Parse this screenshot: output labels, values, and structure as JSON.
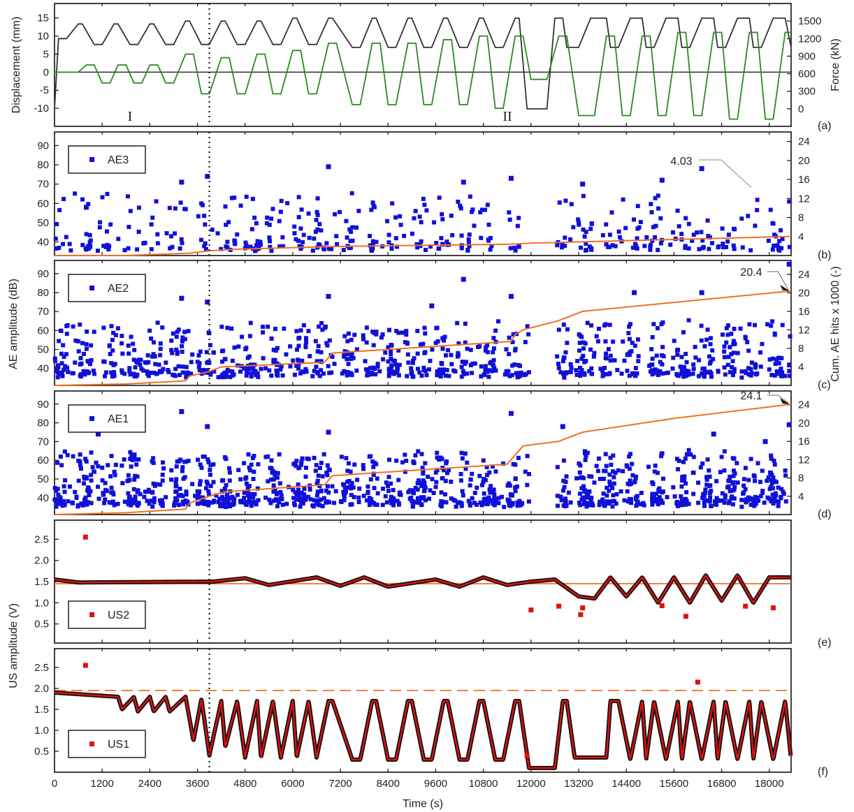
{
  "chart_data": [
    {
      "panel": "(a)",
      "type": "line",
      "ylabel_left": "Displacement (mm)",
      "ylabel_right": "Force (kN)",
      "ylim_left": [
        -15,
        19
      ],
      "yticks_left": [
        -10,
        -5,
        0,
        5,
        10,
        15
      ],
      "ylim_right": [
        -300,
        1800
      ],
      "yticks_right": [
        0,
        300,
        600,
        900,
        1200,
        1500
      ],
      "region_labels": [
        "I",
        "II"
      ],
      "series": [
        {
          "name": "Force",
          "axis": "right",
          "color": "#333333",
          "x": [
            0,
            100,
            300,
            600,
            700,
            1000,
            1200,
            1500,
            1600,
            1900,
            2100,
            2400,
            2500,
            2800,
            3000,
            3300,
            3400,
            3700,
            3900,
            4200,
            4300,
            4600,
            4800,
            5100,
            5200,
            5500,
            5700,
            6000,
            6100,
            6400,
            6600,
            6900,
            7000,
            7500,
            7700,
            8000,
            8100,
            8400,
            8600,
            8900,
            9000,
            9300,
            9500,
            9800,
            9900,
            10200,
            10400,
            10700,
            10800,
            11100,
            11300,
            11600,
            11700,
            11900,
            11900,
            12400,
            12600,
            12800,
            12900,
            13200,
            13500,
            13900,
            14000,
            14200,
            14500,
            14800,
            14900,
            15100,
            15400,
            15700,
            15800,
            16000,
            16300,
            16600,
            16700,
            16900,
            17200,
            17500,
            17600,
            17800,
            18100,
            18400,
            18550
          ],
          "y": [
            0,
            1200,
            1200,
            1450,
            1450,
            1100,
            1100,
            1450,
            1450,
            1100,
            1100,
            1450,
            1450,
            1100,
            1100,
            1500,
            1500,
            1100,
            1100,
            1500,
            1500,
            1100,
            1100,
            1500,
            1500,
            1100,
            1100,
            1550,
            1550,
            1100,
            1100,
            1550,
            1550,
            1050,
            1050,
            1550,
            1550,
            1050,
            1050,
            1550,
            1550,
            1050,
            1050,
            1550,
            1550,
            1050,
            1050,
            1550,
            1550,
            1050,
            1050,
            1550,
            1550,
            0,
            0,
            0,
            1550,
            1550,
            1050,
            1050,
            1550,
            1550,
            1050,
            1050,
            1550,
            1550,
            1050,
            1050,
            1550,
            1550,
            1050,
            1050,
            1550,
            1550,
            1050,
            1050,
            1550,
            1550,
            1050,
            1050,
            1550,
            1550,
            1050
          ]
        },
        {
          "name": "Displacement",
          "axis": "left",
          "color": "#2a8a1e",
          "x": [
            0,
            400,
            600,
            800,
            1000,
            1200,
            1400,
            1600,
            1800,
            2000,
            2200,
            2400,
            2600,
            2800,
            3000,
            3300,
            3500,
            3700,
            3900,
            4200,
            4400,
            4600,
            4800,
            5100,
            5300,
            5500,
            5700,
            6000,
            6200,
            6400,
            6600,
            6900,
            7100,
            7500,
            7700,
            8000,
            8200,
            8400,
            8600,
            8900,
            9100,
            9300,
            9500,
            9800,
            10000,
            10200,
            10400,
            10700,
            10900,
            11100,
            11300,
            11600,
            11800,
            12000,
            12400,
            12700,
            12900,
            13200,
            13600,
            13900,
            14100,
            14300,
            14500,
            14800,
            15000,
            15200,
            15400,
            15700,
            15900,
            16100,
            16300,
            16600,
            16800,
            17000,
            17200,
            17500,
            17700,
            17900,
            18100,
            18400,
            18550
          ],
          "y": [
            0,
            0,
            0,
            2,
            2,
            -3,
            -3,
            2,
            2,
            -3,
            -3,
            2,
            2,
            -3,
            -3,
            5,
            5,
            -6,
            -6,
            4,
            4,
            -6,
            -6,
            5,
            5,
            -6,
            -6,
            6,
            6,
            -6,
            -6,
            8,
            8,
            -9,
            -9,
            8,
            8,
            -9,
            -9,
            8,
            8,
            -9,
            -9,
            9,
            9,
            -9,
            -9,
            10,
            10,
            -10,
            -10,
            10,
            10,
            -2,
            -2,
            10,
            10,
            -12,
            -12,
            10,
            10,
            -12,
            -12,
            10,
            10,
            -12,
            -12,
            11,
            11,
            -12,
            -12,
            11,
            11,
            -13,
            -13,
            11,
            11,
            -13,
            -13,
            11,
            11
          ]
        }
      ]
    },
    {
      "panel": "(b)",
      "type": "scatter",
      "legend": "AE3",
      "ylim": [
        33,
        97
      ],
      "yticks": [
        40,
        50,
        60,
        70,
        80,
        90
      ],
      "ylim_right": [
        0,
        26
      ],
      "yticks_right": [
        4,
        8,
        12,
        16,
        20,
        24
      ],
      "annotation": "4.03",
      "cum_hits": {
        "x": [
          0,
          1800,
          3400,
          3900,
          4500,
          7000,
          11500,
          12000,
          18550
        ],
        "y": [
          0,
          0,
          0.5,
          1.0,
          1.3,
          1.9,
          2.4,
          2.6,
          4.03
        ]
      },
      "scatter_max_amplitude_points": {
        "x": [
          800,
          3200,
          3850,
          6900,
          10300,
          11500,
          13300,
          15300,
          16300
        ],
        "y": [
          58,
          71,
          74,
          79,
          71,
          73,
          70,
          72,
          78
        ]
      }
    },
    {
      "panel": "(c)",
      "type": "scatter",
      "legend": "AE2",
      "ylim": [
        31,
        97
      ],
      "yticks": [
        40,
        50,
        60,
        70,
        80,
        90
      ],
      "ylim_right": [
        0,
        27
      ],
      "yticks_right": [
        4,
        8,
        12,
        16,
        20,
        24
      ],
      "annotation": "20.4",
      "cum_hits": {
        "x": [
          0,
          1800,
          3300,
          3400,
          3900,
          4200,
          6800,
          7000,
          11500,
          11600,
          11800,
          12700,
          13300,
          14500,
          18550
        ],
        "y": [
          0,
          0.3,
          1.0,
          2.0,
          3.0,
          4.0,
          5.0,
          7.0,
          9.5,
          11.0,
          12.0,
          14.0,
          16.0,
          17.0,
          20.4
        ]
      },
      "scatter_max_amplitude_points": {
        "x": [
          3200,
          3850,
          6900,
          9500,
          10300,
          11500,
          14600,
          16300,
          18500
        ],
        "y": [
          77,
          75,
          78,
          73,
          87,
          78,
          80,
          80,
          95
        ]
      }
    },
    {
      "panel": "(d)",
      "type": "scatter",
      "legend": "AE1",
      "ylim": [
        31,
        97
      ],
      "yticks": [
        40,
        50,
        60,
        70,
        80,
        90
      ],
      "ylim_right": [
        0,
        27
      ],
      "yticks_right": [
        4,
        8,
        12,
        16,
        20,
        24
      ],
      "annotation": "24.1",
      "cum_hits": {
        "x": [
          0,
          1800,
          3300,
          3400,
          3900,
          4300,
          6800,
          7000,
          11400,
          11600,
          11800,
          12700,
          13300,
          15600,
          18550
        ],
        "y": [
          0,
          0.4,
          1.2,
          2.5,
          4.0,
          5.0,
          6.5,
          8.5,
          11.0,
          13.0,
          15.0,
          16.0,
          18.0,
          21.0,
          24.1
        ]
      },
      "scatter_max_amplitude_points": {
        "x": [
          1100,
          3200,
          3850,
          6900,
          11500,
          12800,
          16600,
          17900,
          18500
        ],
        "y": [
          74,
          86,
          78,
          75,
          85,
          78,
          74,
          70,
          79
        ]
      }
    },
    {
      "panel": "(e)",
      "type": "scatter",
      "legend": "US2",
      "ylabel_shared": "US amplitude (V)",
      "ylim": [
        0.05,
        2.95
      ],
      "yticks": [
        0.5,
        1.0,
        1.5,
        2.0,
        2.5
      ],
      "reference_level": 1.45,
      "trace": {
        "x": [
          0,
          600,
          4000,
          4800,
          5400,
          6600,
          7200,
          7800,
          8400,
          9600,
          10200,
          10800,
          11400,
          12000,
          12600,
          13200,
          13600,
          14000,
          14400,
          14800,
          15200,
          15600,
          16000,
          16400,
          16800,
          17200,
          17600,
          18000,
          18550
        ],
        "y": [
          1.55,
          1.48,
          1.5,
          1.58,
          1.42,
          1.6,
          1.4,
          1.6,
          1.38,
          1.55,
          1.38,
          1.6,
          1.42,
          1.5,
          1.55,
          1.15,
          1.1,
          1.6,
          1.15,
          1.6,
          1.0,
          1.6,
          1.0,
          1.65,
          1.05,
          1.65,
          1.0,
          1.6,
          1.6
        ]
      },
      "outliers": {
        "x": [
          780,
          12000,
          12700,
          13250,
          13300,
          15300,
          15900,
          17400,
          18100
        ],
        "y": [
          2.55,
          0.83,
          0.92,
          0.72,
          0.88,
          0.93,
          0.68,
          0.92,
          0.88
        ]
      }
    },
    {
      "panel": "(f)",
      "type": "scatter",
      "legend": "US1",
      "ylim": [
        0.0,
        2.95
      ],
      "yticks": [
        0.5,
        1.0,
        1.5,
        2.0,
        2.5
      ],
      "reference_level": 1.95,
      "xlabel": "Time (s)",
      "xlim": [
        0,
        18550
      ],
      "xticks": [
        0,
        1200,
        2400,
        3600,
        4800,
        6000,
        7200,
        8400,
        9600,
        10800,
        12000,
        13200,
        14400,
        15600,
        16800,
        18000
      ],
      "trace": {
        "x": [
          0,
          1600,
          1700,
          2000,
          2100,
          2400,
          2500,
          2800,
          2900,
          3300,
          3500,
          3700,
          3900,
          4200,
          4300,
          4600,
          4800,
          5100,
          5200,
          5500,
          5700,
          6000,
          6100,
          6400,
          6600,
          6900,
          7000,
          7500,
          7700,
          8000,
          8100,
          8400,
          8600,
          8900,
          9000,
          9300,
          9500,
          9800,
          9900,
          10200,
          10400,
          10700,
          10800,
          11100,
          11300,
          11600,
          11700,
          11950,
          12000,
          12600,
          12800,
          12900,
          13100,
          13300,
          13900,
          14000,
          14200,
          14500,
          14800,
          14900,
          15100,
          15400,
          15700,
          15800,
          16000,
          16300,
          16600,
          16700,
          16900,
          17200,
          17500,
          17600,
          17800,
          18100,
          18400,
          18550
        ],
        "y": [
          1.9,
          1.8,
          1.5,
          1.8,
          1.45,
          1.8,
          1.45,
          1.8,
          1.45,
          1.8,
          0.75,
          1.75,
          0.4,
          1.7,
          0.6,
          1.7,
          0.35,
          1.7,
          0.35,
          1.7,
          0.35,
          1.7,
          0.35,
          1.7,
          0.35,
          1.7,
          1.7,
          0.3,
          0.3,
          1.7,
          1.7,
          0.3,
          0.3,
          1.7,
          1.7,
          0.3,
          0.3,
          1.7,
          1.7,
          0.3,
          0.3,
          1.7,
          1.7,
          0.3,
          0.3,
          1.7,
          1.7,
          0.1,
          0.1,
          0.1,
          1.7,
          1.7,
          0.35,
          0.35,
          0.35,
          1.7,
          1.7,
          0.3,
          1.7,
          0.3,
          1.7,
          0.3,
          1.7,
          0.3,
          1.7,
          0.3,
          1.7,
          0.3,
          1.7,
          0.3,
          1.7,
          0.3,
          1.7,
          0.3,
          1.7,
          0.3
        ]
      },
      "outliers": {
        "x": [
          780,
          11900,
          16200
        ],
        "y": [
          2.55,
          0.4,
          2.15
        ]
      }
    }
  ],
  "shared_labels": {
    "ae_left": "AE amplitude (dB)",
    "ae_right": "Cum. AE hits x 1000 (-)",
    "vertical_marker_time": 3900
  },
  "colors": {
    "ae_points": "#1010d8",
    "us_points": "#dd1111",
    "cum_line": "#f07020",
    "force": "#333333",
    "displacement": "#2a8a1e",
    "frame": "#111111"
  }
}
